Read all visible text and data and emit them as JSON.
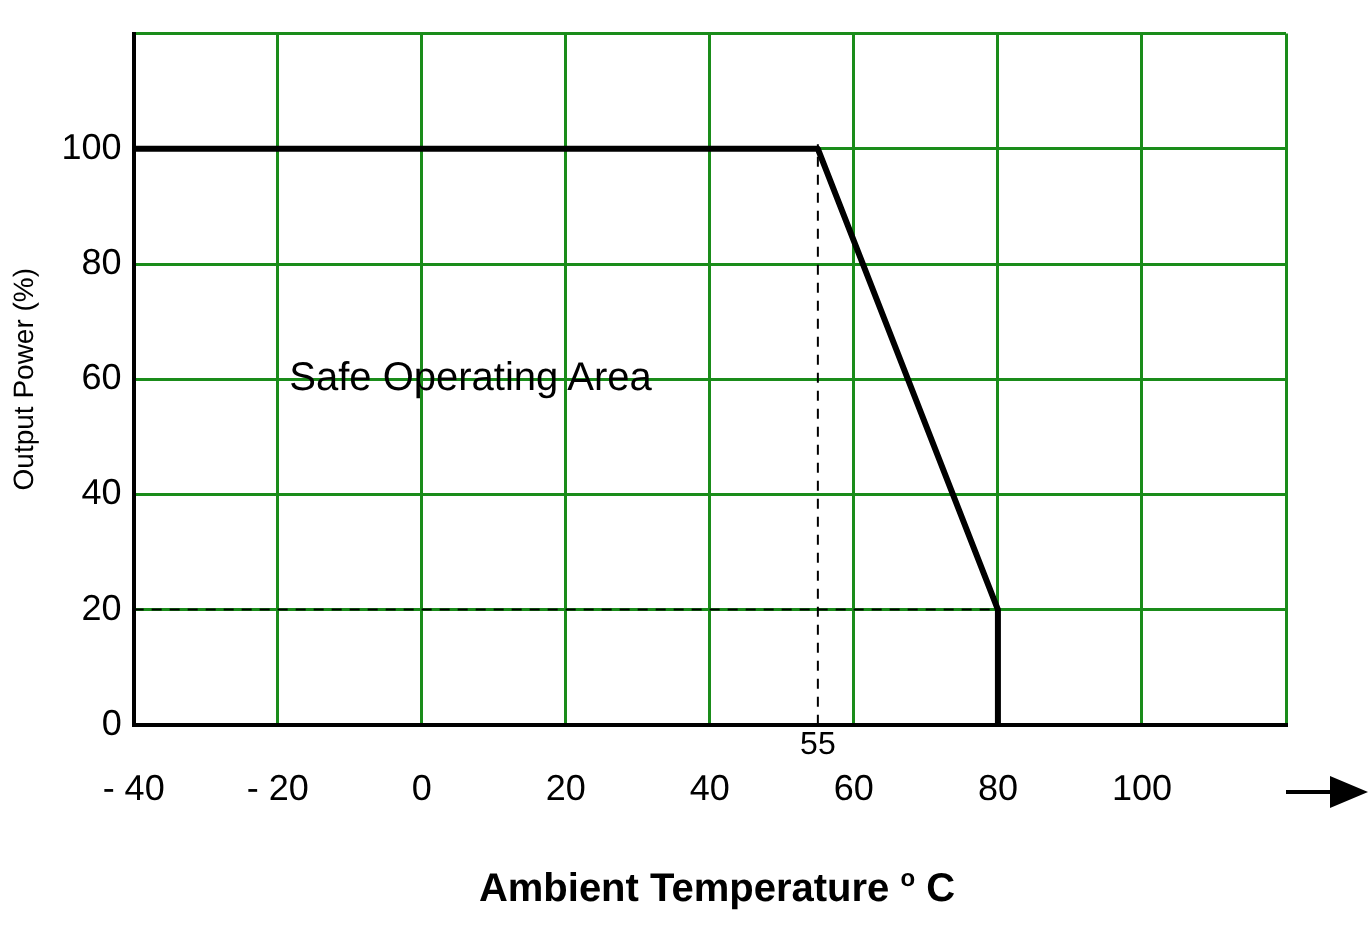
{
  "chart_data": {
    "type": "line",
    "xlabel": "Ambient Temperature $^{o}$ C",
    "ylabel": "Output Power (%)",
    "x": [
      -40,
      55,
      80,
      80
    ],
    "series": [
      {
        "color": "#000000",
        "values": [
          100,
          100,
          20,
          0
        ]
      }
    ],
    "xlim": [
      -40,
      120
    ],
    "xticks": [
      {
        "value": -40,
        "label": "- 40"
      },
      {
        "value": -20,
        "label": "- 20"
      },
      0,
      20,
      40,
      60,
      80,
      100,
      {
        "value": 120,
        "label": null
      }
    ],
    "ylim": [
      0,
      120
    ],
    "yticks": [
      0,
      20,
      40,
      60,
      80,
      100,
      {
        "value": 120,
        "label": null
      }
    ],
    "grid": true,
    "marker": "none",
    "line_style": "solid",
    "ref_lines": [
      {
        "axis": "x",
        "value": 55,
        "label": "55",
        "line_style": "dashed",
        "color": "#000000"
      },
      {
        "axis": "y",
        "value": 20,
        "line_style": "dashed",
        "color": "#000000"
      }
    ],
    "annotations": [
      "Safe Operating Area"
    ]
  }
}
